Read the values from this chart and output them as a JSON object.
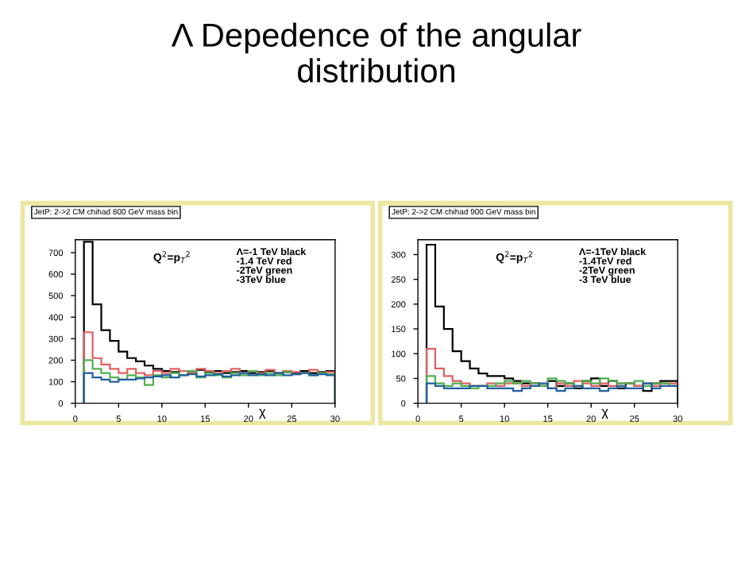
{
  "chart_data": [
    {
      "type": "histogram",
      "title": "Λ Depedence of the angular\ndistribution",
      "xlabel": "χ",
      "annotations": [
        "JetP: 2->2 CM chihad 800 GeV mass bin",
        "Q$^{2}$=p$_{T}$$^{2}$",
        "Λ=-1 TeV black\n-1.4 TeV red\n-2TeV green\n-3TeV blue"
      ],
      "bins": [
        1,
        2,
        3,
        4,
        5,
        6,
        7,
        8,
        9,
        10,
        11,
        12,
        13,
        14,
        15,
        16,
        17,
        18,
        19,
        20,
        21,
        22,
        23,
        24,
        25,
        26,
        27,
        28,
        29,
        30
      ],
      "series": [
        {
          "color": "#000000",
          "values": [
            750,
            460,
            340,
            290,
            240,
            210,
            195,
            175,
            160,
            150,
            145,
            150,
            140,
            155,
            145,
            150,
            140,
            145,
            150,
            140,
            145,
            150,
            140,
            145,
            140,
            150,
            140,
            145,
            150
          ]
        },
        {
          "color": "#e06060",
          "values": [
            330,
            210,
            180,
            160,
            140,
            160,
            140,
            130,
            150,
            140,
            160,
            150,
            140,
            160,
            150,
            140,
            150,
            160,
            140,
            150,
            140,
            155,
            140,
            150,
            145,
            140,
            155,
            140,
            145
          ]
        },
        {
          "color": "#50b050",
          "values": [
            200,
            160,
            140,
            120,
            110,
            130,
            120,
            85,
            130,
            120,
            140,
            130,
            150,
            120,
            140,
            130,
            120,
            140,
            130,
            150,
            130,
            140,
            130,
            145,
            135,
            140,
            130,
            140,
            135
          ]
        },
        {
          "color": "#2060a0",
          "values": [
            140,
            120,
            110,
            100,
            110,
            110,
            115,
            120,
            125,
            130,
            120,
            130,
            135,
            125,
            130,
            135,
            125,
            130,
            140,
            130,
            135,
            130,
            140,
            130,
            135,
            140,
            130,
            135,
            130
          ]
        }
      ],
      "xlim": [
        0,
        30
      ],
      "ylim": [
        0,
        760
      ],
      "xticks": [
        0,
        5,
        10,
        15,
        20,
        25,
        30
      ],
      "yticks": [
        0,
        100,
        200,
        300,
        400,
        500,
        600,
        700
      ],
      "grid": false,
      "legend": false
    },
    {
      "type": "histogram",
      "xlabel": "χ",
      "annotations": [
        "JetP: 2->2 CM chihad 900 GeV mass bin",
        "Q$^{2}$=p$_{T}$$^{2}$",
        "Λ=-1TeV black\n-1.4TeV red\n-2TeV green\n-3 TeV blue"
      ],
      "bins": [
        1,
        2,
        3,
        4,
        5,
        6,
        7,
        8,
        9,
        10,
        11,
        12,
        13,
        14,
        15,
        16,
        17,
        18,
        19,
        20,
        21,
        22,
        23,
        24,
        25,
        26,
        27,
        28,
        29,
        30
      ],
      "series": [
        {
          "color": "#000000",
          "values": [
            320,
            195,
            150,
            105,
            85,
            70,
            60,
            55,
            55,
            50,
            45,
            40,
            40,
            35,
            45,
            35,
            40,
            30,
            45,
            50,
            35,
            45,
            30,
            40,
            35,
            25,
            40,
            45,
            45
          ]
        },
        {
          "color": "#e06060",
          "values": [
            110,
            70,
            55,
            45,
            40,
            35,
            35,
            40,
            35,
            40,
            40,
            35,
            40,
            35,
            30,
            40,
            35,
            45,
            40,
            35,
            40,
            35,
            40,
            40,
            35,
            40,
            35,
            40,
            40
          ]
        },
        {
          "color": "#50b050",
          "values": [
            55,
            40,
            35,
            40,
            35,
            30,
            35,
            35,
            40,
            45,
            40,
            45,
            40,
            35,
            50,
            45,
            40,
            35,
            45,
            40,
            50,
            45,
            40,
            40,
            45,
            35,
            40,
            40,
            35
          ]
        },
        {
          "color": "#2060a0",
          "values": [
            40,
            35,
            30,
            30,
            30,
            35,
            35,
            30,
            30,
            30,
            25,
            30,
            35,
            40,
            30,
            25,
            30,
            35,
            30,
            30,
            25,
            30,
            35,
            30,
            30,
            40,
            30,
            35,
            35
          ]
        }
      ],
      "xlim": [
        0,
        30
      ],
      "ylim": [
        0,
        330
      ],
      "xticks": [
        0,
        5,
        10,
        15,
        20,
        25,
        30
      ],
      "yticks": [
        0,
        50,
        100,
        150,
        200,
        250,
        300
      ],
      "grid": false,
      "legend": false
    }
  ]
}
